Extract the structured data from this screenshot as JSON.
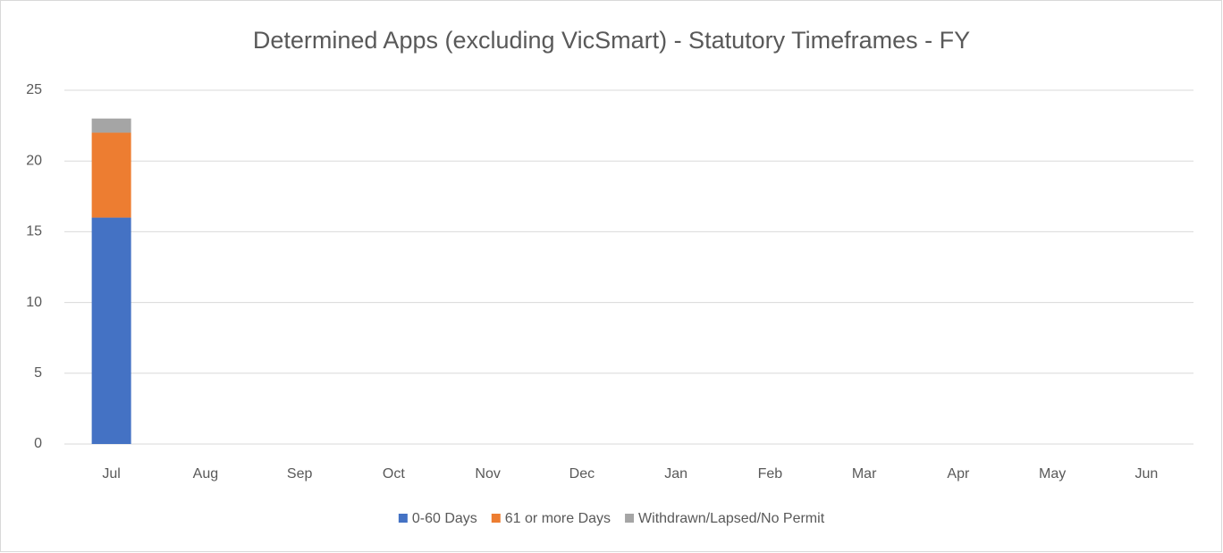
{
  "chart_data": {
    "type": "stacked_bar",
    "title": "Determined Apps (excluding VicSmart) - Statutory Timeframes - FY",
    "categories": [
      "Jul",
      "Aug",
      "Sep",
      "Oct",
      "Nov",
      "Dec",
      "Jan",
      "Feb",
      "Mar",
      "Apr",
      "May",
      "Jun"
    ],
    "series": [
      {
        "name": "0-60 Days",
        "color": "#4472c4",
        "values": [
          16,
          0,
          0,
          0,
          0,
          0,
          0,
          0,
          0,
          0,
          0,
          0
        ]
      },
      {
        "name": "61 or more Days",
        "color": "#ed7d31",
        "values": [
          6,
          0,
          0,
          0,
          0,
          0,
          0,
          0,
          0,
          0,
          0,
          0
        ]
      },
      {
        "name": "Withdrawn/Lapsed/No Permit",
        "color": "#a5a5a5",
        "values": [
          1,
          0,
          0,
          0,
          0,
          0,
          0,
          0,
          0,
          0,
          0,
          0
        ]
      }
    ],
    "ylim": [
      0,
      25
    ],
    "yticks": [
      0,
      5,
      10,
      15,
      20,
      25
    ],
    "grid": true,
    "legend": "bottom"
  }
}
